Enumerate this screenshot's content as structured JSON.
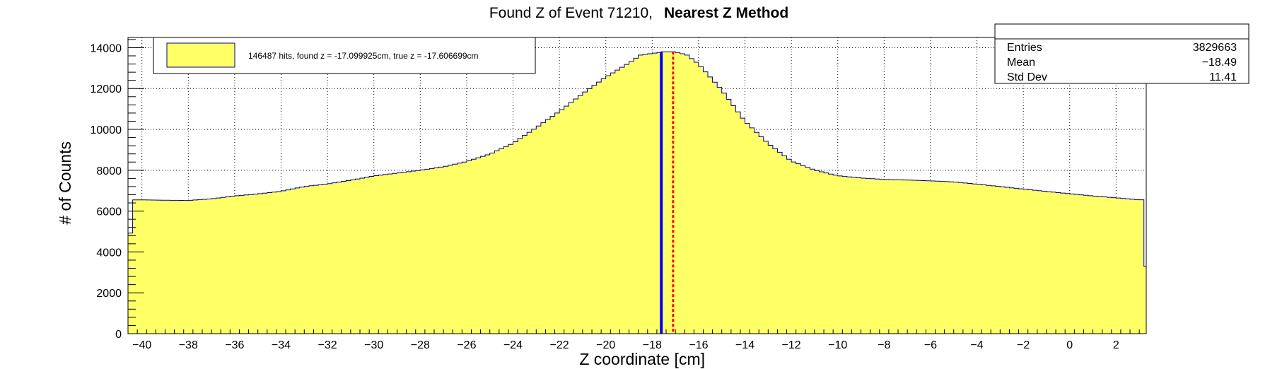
{
  "chart_data": {
    "type": "area",
    "title": "Found Z of Event 71210,",
    "title_method": "Nearest Z Method",
    "xlabel": "Z coordinate [cm]",
    "ylabel": "# of Counts",
    "xlim": [
      -40.6,
      3.3
    ],
    "ylim": [
      0,
      14500
    ],
    "x_ticks": [
      -40,
      -38,
      -36,
      -34,
      -32,
      -30,
      -28,
      -26,
      -24,
      -22,
      -20,
      -18,
      -16,
      -14,
      -12,
      -10,
      -8,
      -6,
      -4,
      -2,
      0,
      2
    ],
    "y_ticks": [
      0,
      2000,
      4000,
      6000,
      8000,
      10000,
      12000,
      14000
    ],
    "grid": true,
    "fill_color": "#ffff66",
    "line_color": "#00008b",
    "series": [
      {
        "x": [
          -40.6,
          -40.4,
          -40.0,
          -39.0,
          -38.0,
          -37.0,
          -36.0,
          -35.0,
          -34.0,
          -33.0,
          -32.0,
          -31.0,
          -30.0,
          -29.0,
          -28.0,
          -27.0,
          -26.0,
          -25.0,
          -24.0,
          -23.0,
          -22.0,
          -21.0,
          -20.0,
          -19.0,
          -18.5,
          -18.0,
          -17.5,
          -17.0,
          -16.5,
          -16.0,
          -15.0,
          -14.0,
          -13.0,
          -12.0,
          -11.0,
          -10.0,
          -9.0,
          -8.0,
          -7.0,
          -6.0,
          -5.0,
          -4.0,
          -3.0,
          -2.0,
          -1.0,
          0.0,
          1.0,
          2.0,
          3.0,
          3.2,
          3.3
        ],
        "y": [
          3300,
          6550,
          6550,
          6530,
          6520,
          6600,
          6740,
          6840,
          6970,
          7200,
          7330,
          7510,
          7720,
          7860,
          8000,
          8170,
          8430,
          8790,
          9320,
          10090,
          10880,
          11750,
          12560,
          13250,
          13640,
          13720,
          13800,
          13800,
          13640,
          13200,
          11930,
          10400,
          9310,
          8450,
          8010,
          7730,
          7620,
          7550,
          7520,
          7480,
          7430,
          7320,
          7200,
          7080,
          6960,
          6850,
          6740,
          6650,
          6550,
          6560,
          3300
        ]
      }
    ],
    "found_z": -17.099925,
    "true_z": -17.606699,
    "found_z_line_color": "#ff0000",
    "true_z_line_color": "#0000ff"
  },
  "legend": {
    "text": "146487 hits, found z = -17.099925cm, true z = -17.606699cm"
  },
  "stats": {
    "rows": [
      {
        "label": "Entries",
        "value": "3829663"
      },
      {
        "label": "Mean",
        "value": "−18.49"
      },
      {
        "label": "Std Dev",
        "value": "11.41"
      }
    ]
  }
}
